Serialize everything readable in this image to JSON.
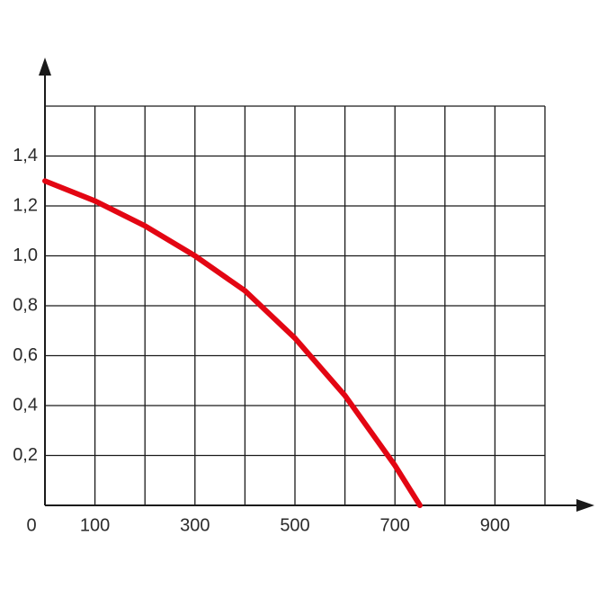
{
  "chart_data": {
    "type": "line",
    "x": [
      0,
      100,
      200,
      300,
      400,
      500,
      600,
      700,
      750
    ],
    "series": [
      {
        "color": "#e30613",
        "values": [
          1.3,
          1.22,
          1.12,
          1.0,
          0.86,
          0.67,
          0.44,
          0.16,
          0
        ]
      }
    ],
    "xlim": [
      0,
      1000
    ],
    "ylim": [
      0,
      1.6
    ],
    "xticks": [
      0,
      100,
      300,
      500,
      700,
      900
    ],
    "yticks": [
      {
        "value": 0.2,
        "label": "0,2"
      },
      {
        "value": 0.4,
        "label": "0,4"
      },
      {
        "value": 0.6,
        "label": "0,6"
      },
      {
        "value": 0.8,
        "label": "0,8"
      },
      {
        "value": 1.0,
        "label": "1,0"
      },
      {
        "value": 1.2,
        "label": "1,2"
      },
      {
        "value": 1.4,
        "label": "1,4"
      }
    ],
    "xgrid": [
      0,
      100,
      200,
      300,
      400,
      500,
      600,
      700,
      800,
      900,
      1000
    ],
    "ygrid": [
      0,
      0.2,
      0.4,
      0.6,
      0.8,
      1.0,
      1.2,
      1.4,
      1.6
    ]
  }
}
